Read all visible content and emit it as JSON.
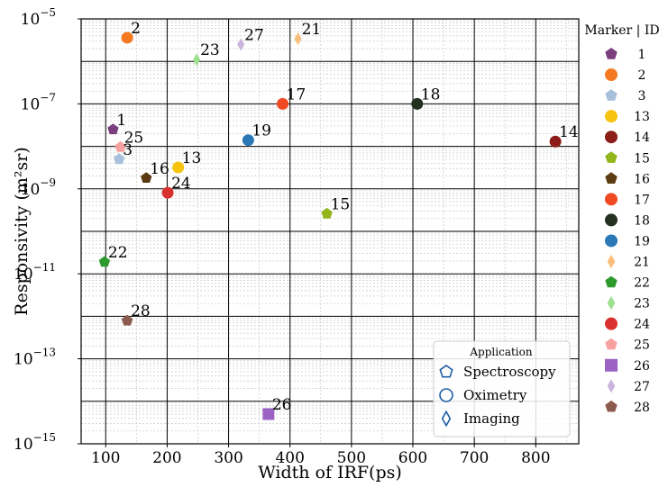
{
  "chart_data": {
    "type": "scatter",
    "xlabel": "Width of IRF(ps)",
    "ylabel": "Responsivity (m²sr)",
    "xlim": [
      60,
      870
    ],
    "ylim_log10": [
      -15,
      -5
    ],
    "y_scale": "log",
    "x_ticks": [
      100,
      200,
      300,
      400,
      500,
      600,
      700,
      800
    ],
    "y_ticks": [
      {
        "base": "10",
        "exp": "−5",
        "log": -5
      },
      {
        "base": "10",
        "exp": "−7",
        "log": -7
      },
      {
        "base": "10",
        "exp": "−9",
        "log": -9
      },
      {
        "base": "10",
        "exp": "−11",
        "log": -11
      },
      {
        "base": "10",
        "exp": "−13",
        "log": -13
      },
      {
        "base": "10",
        "exp": "−15",
        "log": -15
      }
    ],
    "grid": true,
    "legend_title": "Marker | ID",
    "legend_placement": "outside-right",
    "points": [
      {
        "id": "1",
        "x": 112,
        "y": 2.5e-08,
        "marker": "pentagon",
        "color": "#7b3f80"
      },
      {
        "id": "2",
        "x": 135,
        "y": 3.6e-06,
        "marker": "circle",
        "color": "#f47920"
      },
      {
        "id": "3",
        "x": 122,
        "y": 5e-09,
        "marker": "pentagon",
        "color": "#a9c0dc"
      },
      {
        "id": "13",
        "x": 218,
        "y": 3.2e-09,
        "marker": "circle",
        "color": "#f6c40f"
      },
      {
        "id": "14",
        "x": 832,
        "y": 1.3e-08,
        "marker": "circle",
        "color": "#8c1d18"
      },
      {
        "id": "15",
        "x": 460,
        "y": 2.6e-10,
        "marker": "pentagon",
        "color": "#92b51a"
      },
      {
        "id": "16",
        "x": 166,
        "y": 1.8e-09,
        "marker": "pentagon",
        "color": "#5c3a12"
      },
      {
        "id": "17",
        "x": 388,
        "y": 1e-07,
        "marker": "circle",
        "color": "#f04a23"
      },
      {
        "id": "18",
        "x": 607,
        "y": 1e-07,
        "marker": "circle",
        "color": "#243020"
      },
      {
        "id": "19",
        "x": 332,
        "y": 1.4e-08,
        "marker": "circle",
        "color": "#2a78b5"
      },
      {
        "id": "21",
        "x": 413,
        "y": 3.4e-06,
        "marker": "diamond",
        "color": "#fbbd7c"
      },
      {
        "id": "22",
        "x": 98,
        "y": 1.9e-11,
        "marker": "pentagon",
        "color": "#2e9a2e"
      },
      {
        "id": "23",
        "x": 248,
        "y": 1.1e-06,
        "marker": "diamond",
        "color": "#9de08f"
      },
      {
        "id": "24",
        "x": 201,
        "y": 8.1e-10,
        "marker": "circle",
        "color": "#d9322e"
      },
      {
        "id": "25",
        "x": 124,
        "y": 9.6e-09,
        "marker": "pentagon",
        "color": "#f7a0a0"
      },
      {
        "id": "26",
        "x": 365,
        "y": 5e-15,
        "marker": "square",
        "color": "#9b62c4"
      },
      {
        "id": "27",
        "x": 320,
        "y": 2.5e-06,
        "marker": "diamond",
        "color": "#c9b5dd"
      },
      {
        "id": "28",
        "x": 135,
        "y": 7.9e-13,
        "marker": "pentagon",
        "color": "#8c5a4e"
      }
    ],
    "application_legend": {
      "title": "Application",
      "items": [
        {
          "label": "Spectroscopy",
          "marker": "pentagon"
        },
        {
          "label": "Oximetry",
          "marker": "circle"
        },
        {
          "label": "Imaging",
          "marker": "diamond"
        }
      ],
      "color": "#1f5fa8"
    }
  }
}
